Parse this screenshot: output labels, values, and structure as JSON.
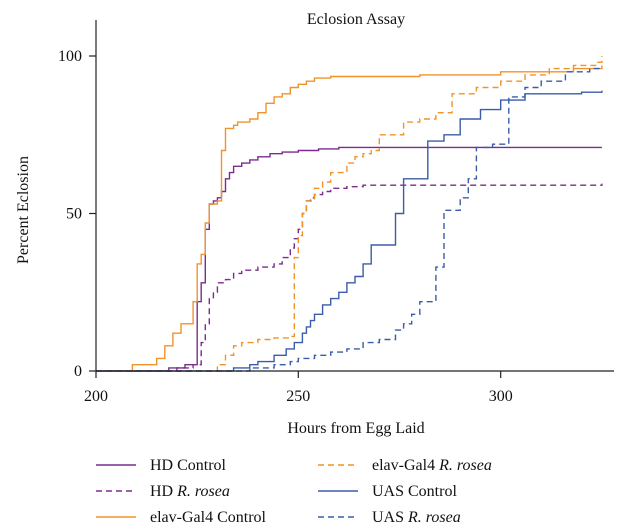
{
  "chart_data": {
    "type": "line",
    "step": true,
    "title": "Eclosion Assay",
    "xlabel": "Hours from Egg Laid",
    "ylabel": "Percent Eclosion",
    "xlim": [
      200,
      328
    ],
    "ylim": [
      0,
      100
    ],
    "xticks": [
      200,
      250,
      300
    ],
    "yticks": [
      0,
      50,
      100
    ],
    "grid": false,
    "legend_placement": "bottom",
    "series": [
      {
        "name": "HD Control",
        "color": "#7b2d8e",
        "dash": "solid",
        "points": [
          [
            200,
            0
          ],
          [
            214,
            0
          ],
          [
            218,
            1
          ],
          [
            222,
            2
          ],
          [
            225,
            22
          ],
          [
            226,
            28
          ],
          [
            227,
            45
          ],
          [
            228,
            53
          ],
          [
            229,
            54
          ],
          [
            230,
            55
          ],
          [
            231,
            57
          ],
          [
            232,
            61
          ],
          [
            233,
            63
          ],
          [
            234,
            65
          ],
          [
            236,
            66
          ],
          [
            238,
            67
          ],
          [
            240,
            68
          ],
          [
            243,
            69
          ],
          [
            246,
            69.5
          ],
          [
            250,
            70
          ],
          [
            255,
            70.5
          ],
          [
            260,
            71
          ],
          [
            300,
            71
          ],
          [
            325,
            71
          ]
        ]
      },
      {
        "name": "HD R. rosea",
        "color": "#7b2d8e",
        "dash": "dashed",
        "points": [
          [
            200,
            0
          ],
          [
            216,
            0
          ],
          [
            220,
            1
          ],
          [
            224,
            2
          ],
          [
            226,
            9
          ],
          [
            227,
            15
          ],
          [
            228,
            23
          ],
          [
            229,
            25
          ],
          [
            230,
            28
          ],
          [
            232,
            29
          ],
          [
            234,
            31
          ],
          [
            236,
            32
          ],
          [
            240,
            33
          ],
          [
            244,
            34
          ],
          [
            246,
            36
          ],
          [
            248,
            39
          ],
          [
            249,
            42
          ],
          [
            250,
            45
          ],
          [
            251,
            50
          ],
          [
            252,
            54
          ],
          [
            253,
            55
          ],
          [
            254,
            56
          ],
          [
            256,
            57
          ],
          [
            258,
            58
          ],
          [
            262,
            58.5
          ],
          [
            266,
            59
          ],
          [
            300,
            59
          ],
          [
            325,
            59.5
          ]
        ]
      },
      {
        "name": "elav-Gal4 Control",
        "color": "#f0932b",
        "dash": "solid",
        "points": [
          [
            200,
            0
          ],
          [
            208,
            0
          ],
          [
            209,
            2
          ],
          [
            215,
            4
          ],
          [
            217,
            8
          ],
          [
            219,
            12
          ],
          [
            221,
            15
          ],
          [
            224,
            22
          ],
          [
            225,
            34
          ],
          [
            226,
            37
          ],
          [
            227,
            47
          ],
          [
            228,
            53
          ],
          [
            230,
            54
          ],
          [
            231,
            70
          ],
          [
            232,
            77
          ],
          [
            234,
            78
          ],
          [
            235,
            79
          ],
          [
            238,
            80
          ],
          [
            240,
            82
          ],
          [
            242,
            85
          ],
          [
            244,
            87
          ],
          [
            246,
            88
          ],
          [
            248,
            90
          ],
          [
            250,
            91
          ],
          [
            252,
            92
          ],
          [
            254,
            93
          ],
          [
            258,
            93.5
          ],
          [
            280,
            94
          ],
          [
            300,
            95
          ],
          [
            318,
            96
          ],
          [
            325,
            97
          ]
        ]
      },
      {
        "name": "elav-Gal4 R. rosea",
        "color": "#f0932b",
        "dash": "dashed",
        "points": [
          [
            200,
            0
          ],
          [
            210,
            0
          ],
          [
            230,
            2
          ],
          [
            232,
            5
          ],
          [
            234,
            8
          ],
          [
            236,
            9
          ],
          [
            240,
            10
          ],
          [
            244,
            10.5
          ],
          [
            248,
            11
          ],
          [
            249,
            36
          ],
          [
            250,
            43
          ],
          [
            251,
            50
          ],
          [
            252,
            54
          ],
          [
            254,
            58
          ],
          [
            256,
            60
          ],
          [
            258,
            63
          ],
          [
            262,
            66
          ],
          [
            264,
            68
          ],
          [
            266,
            69
          ],
          [
            268,
            70
          ],
          [
            270,
            75
          ],
          [
            276,
            79
          ],
          [
            280,
            80
          ],
          [
            284,
            82
          ],
          [
            288,
            88
          ],
          [
            294,
            90
          ],
          [
            300,
            92
          ],
          [
            306,
            94
          ],
          [
            312,
            96
          ],
          [
            318,
            97
          ],
          [
            324,
            98
          ],
          [
            325,
            100
          ]
        ]
      },
      {
        "name": "UAS Control",
        "color": "#3b5ca8",
        "dash": "solid",
        "points": [
          [
            200,
            0
          ],
          [
            225,
            0
          ],
          [
            234,
            1
          ],
          [
            238,
            2
          ],
          [
            240,
            3
          ],
          [
            244,
            5
          ],
          [
            247,
            7
          ],
          [
            249,
            9
          ],
          [
            251,
            12
          ],
          [
            252,
            14
          ],
          [
            253,
            16
          ],
          [
            254,
            18
          ],
          [
            256,
            21
          ],
          [
            258,
            23
          ],
          [
            260,
            25
          ],
          [
            262,
            28
          ],
          [
            264,
            30
          ],
          [
            266,
            34
          ],
          [
            268,
            40
          ],
          [
            272,
            40
          ],
          [
            274,
            50
          ],
          [
            276,
            61
          ],
          [
            282,
            73
          ],
          [
            286,
            75
          ],
          [
            290,
            80
          ],
          [
            295,
            83
          ],
          [
            300,
            86
          ],
          [
            306,
            88
          ],
          [
            320,
            88.5
          ],
          [
            325,
            89
          ]
        ]
      },
      {
        "name": "UAS R. rosea",
        "color": "#3b5ca8",
        "dash": "dashed",
        "points": [
          [
            200,
            0
          ],
          [
            230,
            0
          ],
          [
            238,
            1
          ],
          [
            244,
            2
          ],
          [
            248,
            3
          ],
          [
            250,
            4
          ],
          [
            254,
            5
          ],
          [
            258,
            6
          ],
          [
            262,
            7
          ],
          [
            266,
            9
          ],
          [
            270,
            10
          ],
          [
            274,
            13
          ],
          [
            276,
            15
          ],
          [
            278,
            18
          ],
          [
            280,
            22
          ],
          [
            284,
            33
          ],
          [
            286,
            51
          ],
          [
            290,
            55
          ],
          [
            292,
            61
          ],
          [
            294,
            71
          ],
          [
            298,
            72
          ],
          [
            302,
            87
          ],
          [
            306,
            90
          ],
          [
            310,
            92
          ],
          [
            316,
            95
          ],
          [
            322,
            96
          ],
          [
            325,
            96.5
          ]
        ]
      }
    ]
  },
  "legend": {
    "items": [
      {
        "label": "HD Control",
        "series": 0
      },
      {
        "label_plain": "HD ",
        "label_italic": "R. rosea",
        "series": 1
      },
      {
        "label": "elav-Gal4 Control",
        "series": 2
      },
      {
        "label_plain": "elav-Gal4 ",
        "label_italic": "R. rosea",
        "series": 3
      },
      {
        "label": "UAS Control",
        "series": 4
      },
      {
        "label_plain": "UAS ",
        "label_italic": "R. rosea",
        "series": 5
      }
    ]
  }
}
